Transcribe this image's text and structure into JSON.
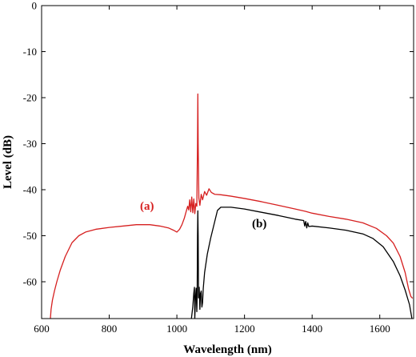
{
  "chart_data": {
    "type": "line",
    "xlabel": "Wavelength (nm)",
    "ylabel": "Level (dB)",
    "xlim": [
      600,
      1700
    ],
    "ylim": [
      -68,
      0
    ],
    "xticks": [
      600,
      800,
      1000,
      1200,
      1400,
      1600
    ],
    "yticks": [
      0,
      -10,
      -20,
      -30,
      -40,
      -50,
      -60
    ],
    "grid": false,
    "series": [
      {
        "name": "(a)",
        "color": "#d62020",
        "label_at": [
          1050,
          -46.3
        ],
        "points": [
          [
            626,
            -68
          ],
          [
            628,
            -66
          ],
          [
            632,
            -64
          ],
          [
            638,
            -62
          ],
          [
            645,
            -60
          ],
          [
            655,
            -57.5
          ],
          [
            670,
            -54.5
          ],
          [
            690,
            -51.5
          ],
          [
            710,
            -50
          ],
          [
            730,
            -49.2
          ],
          [
            760,
            -48.6
          ],
          [
            800,
            -48.2
          ],
          [
            840,
            -47.9
          ],
          [
            880,
            -47.6
          ],
          [
            920,
            -47.6
          ],
          [
            950,
            -47.9
          ],
          [
            975,
            -48.3
          ],
          [
            990,
            -48.8
          ],
          [
            1000,
            -49.2
          ],
          [
            1008,
            -48.6
          ],
          [
            1015,
            -47.6
          ],
          [
            1022,
            -46.2
          ],
          [
            1028,
            -44.6
          ],
          [
            1032,
            -43.6
          ],
          [
            1035,
            -44.4
          ],
          [
            1038,
            -42.2
          ],
          [
            1041,
            -44.8
          ],
          [
            1044,
            -41.6
          ],
          [
            1047,
            -45.0
          ],
          [
            1050,
            -42.0
          ],
          [
            1053,
            -45.2
          ],
          [
            1056,
            -43.0
          ],
          [
            1059,
            -43.6
          ],
          [
            1061,
            -30.0
          ],
          [
            1062,
            -19.2
          ],
          [
            1063,
            -30.0
          ],
          [
            1065,
            -41.8
          ],
          [
            1068,
            -43.4
          ],
          [
            1072,
            -41.0
          ],
          [
            1076,
            -42.2
          ],
          [
            1082,
            -40.4
          ],
          [
            1088,
            -41.2
          ],
          [
            1095,
            -39.8
          ],
          [
            1102,
            -40.6
          ],
          [
            1112,
            -41.0
          ],
          [
            1130,
            -41.1
          ],
          [
            1160,
            -41.4
          ],
          [
            1200,
            -41.9
          ],
          [
            1250,
            -42.6
          ],
          [
            1300,
            -43.4
          ],
          [
            1350,
            -44.2
          ],
          [
            1380,
            -44.7
          ],
          [
            1400,
            -45.1
          ],
          [
            1450,
            -45.8
          ],
          [
            1500,
            -46.4
          ],
          [
            1550,
            -47.2
          ],
          [
            1590,
            -48.4
          ],
          [
            1620,
            -50.0
          ],
          [
            1640,
            -51.6
          ],
          [
            1660,
            -54.5
          ],
          [
            1675,
            -58.0
          ],
          [
            1685,
            -61.5
          ],
          [
            1692,
            -63.2
          ],
          [
            1697,
            -63.6
          ]
        ]
      },
      {
        "name": "(b)",
        "color": "#000000",
        "label_at": [
          1160,
          -48.6
        ],
        "points": [
          [
            1043,
            -68
          ],
          [
            1047,
            -65.5
          ],
          [
            1050,
            -62.5
          ],
          [
            1052,
            -61.2
          ],
          [
            1053,
            -68
          ],
          [
            1055,
            -63.5
          ],
          [
            1057,
            -61.4
          ],
          [
            1059,
            -66.5
          ],
          [
            1060,
            -63.0
          ],
          [
            1061,
            -50.0
          ],
          [
            1062,
            -44.6
          ],
          [
            1063,
            -50.0
          ],
          [
            1064,
            -63.5
          ],
          [
            1066,
            -61.2
          ],
          [
            1068,
            -66.0
          ],
          [
            1070,
            -62.5
          ],
          [
            1072,
            -62.0
          ],
          [
            1074,
            -65.5
          ],
          [
            1076,
            -64.5
          ],
          [
            1078,
            -61.5
          ],
          [
            1082,
            -58.0
          ],
          [
            1090,
            -54.0
          ],
          [
            1100,
            -50.5
          ],
          [
            1110,
            -47.5
          ],
          [
            1120,
            -44.5
          ],
          [
            1130,
            -43.8
          ],
          [
            1160,
            -43.8
          ],
          [
            1200,
            -44.2
          ],
          [
            1250,
            -44.9
          ],
          [
            1300,
            -45.6
          ],
          [
            1350,
            -46.4
          ],
          [
            1375,
            -46.7
          ],
          [
            1378,
            -47.9
          ],
          [
            1381,
            -46.9
          ],
          [
            1384,
            -48.3
          ],
          [
            1387,
            -47.2
          ],
          [
            1390,
            -48.0
          ],
          [
            1400,
            -47.9
          ],
          [
            1450,
            -48.3
          ],
          [
            1500,
            -48.8
          ],
          [
            1550,
            -49.6
          ],
          [
            1580,
            -50.6
          ],
          [
            1610,
            -52.4
          ],
          [
            1640,
            -55.6
          ],
          [
            1660,
            -58.7
          ],
          [
            1675,
            -61.8
          ],
          [
            1688,
            -65.0
          ],
          [
            1695,
            -68
          ]
        ]
      }
    ]
  }
}
